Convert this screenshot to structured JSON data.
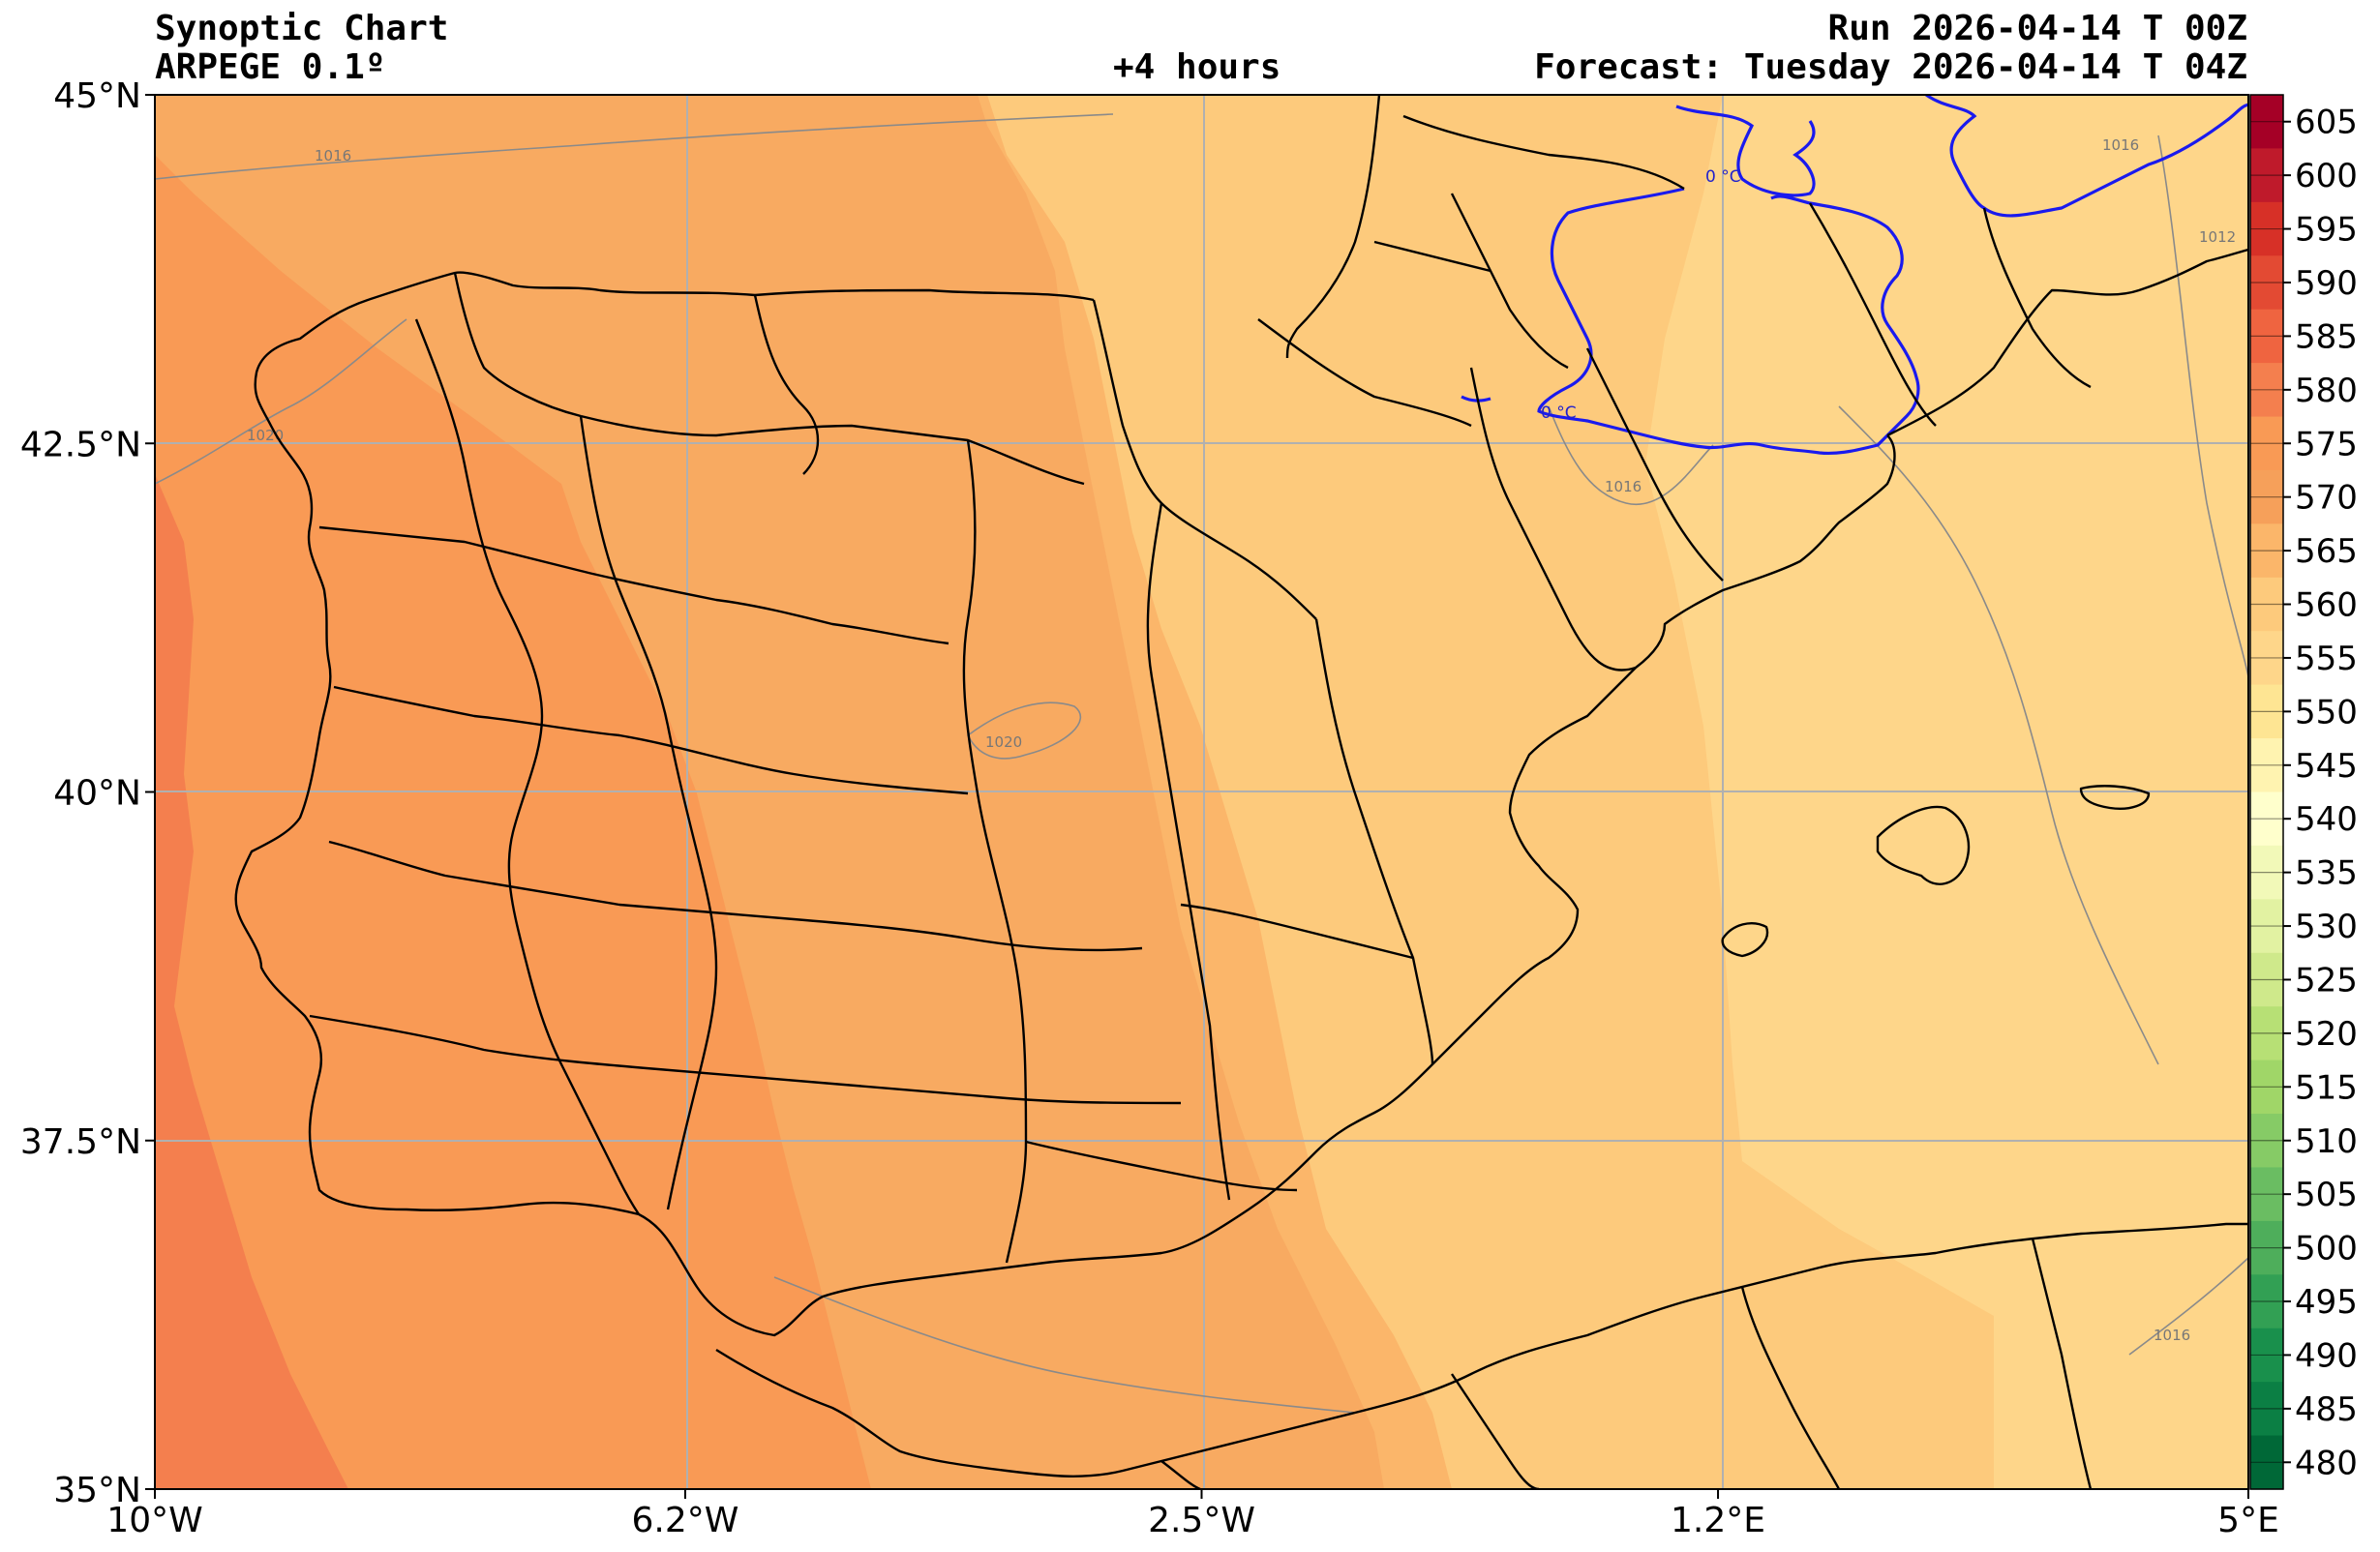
{
  "header": {
    "title": "Synoptic Chart",
    "model": "ARPEGE 0.1º",
    "lead": "+4 hours",
    "run": "Run 2026-04-14 T 00Z",
    "forecast": "Forecast: Tuesday 2026-04-14 T 04Z"
  },
  "map": {
    "lon_range": [
      -10,
      5
    ],
    "lat_range": [
      35,
      45
    ],
    "lon_ticks": [
      {
        "value": -10,
        "label": "10°W"
      },
      {
        "value": -6.2,
        "label": "6.2°W"
      },
      {
        "value": -2.5,
        "label": "2.5°W"
      },
      {
        "value": 1.2,
        "label": "1.2°E"
      },
      {
        "value": 5,
        "label": "5°E"
      }
    ],
    "lat_ticks": [
      {
        "value": 45,
        "label": "45°N"
      },
      {
        "value": 42.5,
        "label": "42.5°N"
      },
      {
        "value": 40,
        "label": "40°N"
      },
      {
        "value": 37.5,
        "label": "37.5°N"
      },
      {
        "value": 35,
        "label": "35°N"
      }
    ],
    "grid": true,
    "isobar_labels": [
      "1016",
      "1020",
      "1020",
      "1016",
      "1016",
      "1016",
      "1012"
    ],
    "freezing_level_labels": [
      "0 °C",
      "0 °C"
    ],
    "field_colors": {
      "565": "#f6a05a",
      "570": "#f99a55",
      "575": "#f47f4e",
      "560": "#fbb66a",
      "555": "#fdca7c",
      "550": "#fed68a"
    }
  },
  "colorbar": {
    "levels": [
      605,
      600,
      595,
      590,
      585,
      580,
      575,
      570,
      565,
      560,
      555,
      550,
      545,
      540,
      535,
      530,
      525,
      520,
      515,
      510,
      505,
      500,
      495,
      490,
      485,
      480
    ],
    "labels": [
      "605",
      "600",
      "595",
      "590",
      "585",
      "580",
      "575",
      "570",
      "565",
      "560",
      "555",
      "550",
      "545",
      "540",
      "535",
      "530",
      "525",
      "520",
      "515",
      "510",
      "505",
      "500",
      "495",
      "490",
      "485",
      "480"
    ],
    "colors": [
      "#a50026",
      "#bf1a2b",
      "#d73027",
      "#e34a33",
      "#ef6440",
      "#f47f4e",
      "#f99a55",
      "#f6a05a",
      "#fbb66a",
      "#fdca7c",
      "#fed68a",
      "#fee593",
      "#fff3b0",
      "#ffffcc",
      "#f2f9b8",
      "#e2f2a2",
      "#cfe98b",
      "#b7e075",
      "#a0d668",
      "#86cb66",
      "#6abd62",
      "#4eae5b",
      "#32a054",
      "#19904c",
      "#0b7f44",
      "#006837"
    ]
  }
}
